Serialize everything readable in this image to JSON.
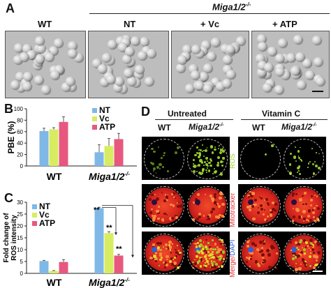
{
  "panel_a": {
    "letter": "A",
    "group_header": "Miga1/2",
    "group_header_sup": "-/-",
    "columns": [
      "WT",
      "NT",
      "+ Vc",
      "+ ATP"
    ]
  },
  "panel_b": {
    "letter": "B"
  },
  "panel_c": {
    "letter": "C"
  },
  "panel_d": {
    "letter": "D",
    "headers": [
      "Untreated",
      "Vitamin C"
    ],
    "col_labels": [
      "WT",
      "Miga1/2",
      "WT",
      "Miga1/2"
    ],
    "col_sup": "-/-",
    "row_labels": [
      "ROS",
      "Mitotracker",
      "Merge/",
      "DAPI"
    ]
  },
  "colors": {
    "NT": "#7fb8e6",
    "Vc": "#d8ec62",
    "ATP": "#e8587e",
    "ROS": "#9bd12e",
    "Mitotracker": "#e8343a",
    "DAPI": "#2f5fd6"
  },
  "chart_data": [
    {
      "type": "bar",
      "title": "",
      "ylabel": "PBE (%)",
      "ylim": [
        0,
        100
      ],
      "yticks": [
        "0",
        "20",
        "40",
        "60",
        "80",
        "100"
      ],
      "categories": [
        "WT",
        "Miga1/2-/-"
      ],
      "legend": [
        "NT",
        "Vc",
        "ATP"
      ],
      "legend_position": "top-right",
      "series": [
        {
          "name": "NT",
          "values": [
            61,
            24
          ],
          "errors": [
            5,
            13
          ]
        },
        {
          "name": "Vc",
          "values": [
            64,
            35
          ],
          "errors": [
            3,
            13
          ]
        },
        {
          "name": "ATP",
          "values": [
            77,
            47
          ],
          "errors": [
            9,
            10
          ]
        }
      ]
    },
    {
      "type": "bar",
      "title": "",
      "ylabel": "Fold change of ROS intensity",
      "ylim": [
        0,
        30
      ],
      "yticks": [
        "0",
        "5",
        "10",
        "15",
        "20",
        "25",
        "30"
      ],
      "categories": [
        "WT",
        "Miga1/2-/-"
      ],
      "legend": [
        "NT",
        "Vc",
        "ATP"
      ],
      "legend_position": "top-left",
      "annotations": [
        "**",
        "**",
        "**"
      ],
      "series": [
        {
          "name": "NT",
          "values": [
            5.2,
            27.5
          ],
          "errors": [
            0.3,
            0.4
          ]
        },
        {
          "name": "Vc",
          "values": [
            1.0,
            17.0
          ],
          "errors": [
            0.2,
            0.6
          ]
        },
        {
          "name": "ATP",
          "values": [
            4.8,
            7.5
          ],
          "errors": [
            1.0,
            0.5
          ]
        }
      ]
    }
  ]
}
